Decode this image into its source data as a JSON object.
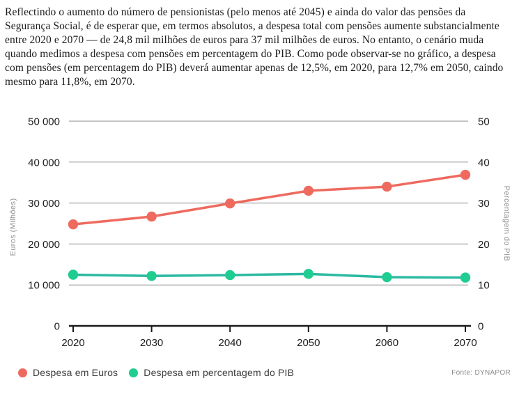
{
  "intro": {
    "text": "Reflectindo o aumento do número de pensionistas (pelo menos até 2045) e ainda do valor das pensões da Segurança Social, é de esperar que, em termos absolutos, a despesa total com pensões aumente substancialmente entre 2020 e 2070 — de 24,8 mil milhões de euros para 37 mil milhões de euros. No entanto, o cenário muda quando medimos a despesa com pensões em percentagem do PIB. Como pode observar-se no gráfico, a despesa com pensões (em percentagem do PIB) deverá aumentar apenas de 12,5%, em 2020, para 12,7% em 2050, caindo mesmo para 11,8%, em 2070."
  },
  "chart_data": {
    "type": "line",
    "x": [
      "2020",
      "2030",
      "2040",
      "2050",
      "2060",
      "2070"
    ],
    "series": [
      {
        "name": "Despesa em Euros",
        "axis": "left",
        "color": "#ee6a5f",
        "point_color": "#ee6a5f",
        "values": [
          24800,
          26700,
          29900,
          33000,
          34000,
          36900
        ]
      },
      {
        "name": "Despesa em percentagem do PIB",
        "axis": "right",
        "color": "#2bb9a2",
        "point_color": "#1fcd90",
        "values": [
          12.5,
          12.2,
          12.4,
          12.7,
          11.9,
          11.8
        ]
      }
    ],
    "left_axis": {
      "label": "Euros (Milhões)",
      "min": 0,
      "max": 50000,
      "tick_labels": [
        "0",
        "10 000",
        "20 000",
        "30 000",
        "40 000",
        "50 000"
      ]
    },
    "right_axis": {
      "label": "Percentagem do PIB",
      "min": 0,
      "max": 50,
      "tick_labels": [
        "0",
        "10",
        "20",
        "30",
        "40",
        "50"
      ]
    },
    "grid": true,
    "grid_color": "#8a8a8a",
    "axis_color": "#1a1a1a",
    "legend_position": "bottom-left"
  },
  "source": {
    "label": "Fonte: DYNAPOR"
  }
}
